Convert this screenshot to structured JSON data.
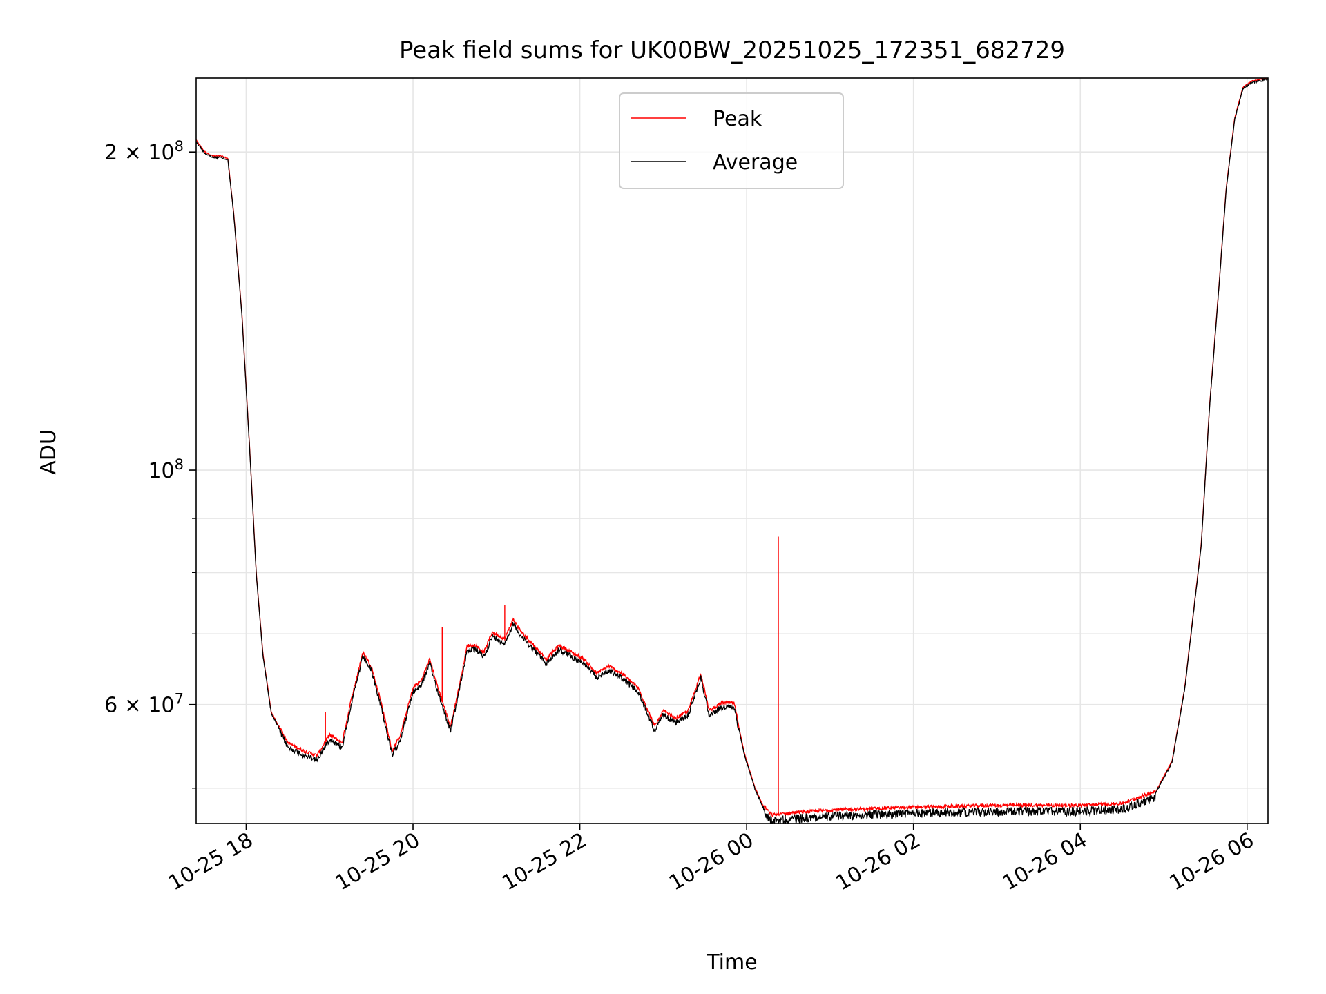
{
  "chart_data": {
    "type": "line",
    "title": "Peak field sums for UK00BW_20251025_172351_682729",
    "xlabel": "Time",
    "ylabel": "ADU",
    "yscale": "log",
    "xlim_hours": [
      -0.6,
      12.25
    ],
    "ylim": [
      46300000,
      235000000
    ],
    "x_unit": "hours since 2025-10-25 18:00",
    "grid": true,
    "legend_position": "upper center",
    "x_ticks": [
      {
        "value": 0,
        "label": "10-25 18"
      },
      {
        "value": 2,
        "label": "10-25 20"
      },
      {
        "value": 4,
        "label": "10-25 22"
      },
      {
        "value": 6,
        "label": "10-26 00"
      },
      {
        "value": 8,
        "label": "10-26 02"
      },
      {
        "value": 10,
        "label": "10-26 04"
      },
      {
        "value": 12,
        "label": "10-26 06"
      }
    ],
    "y_major_ticks": [
      {
        "value": 60000000,
        "mantissa": "6",
        "exp": "7"
      },
      {
        "value": 100000000,
        "mantissa": "",
        "exp": "8"
      },
      {
        "value": 200000000,
        "mantissa": "2",
        "exp": "8"
      }
    ],
    "y_minor_ticks": [
      50000000,
      70000000,
      80000000,
      90000000
    ],
    "series": [
      {
        "name": "Peak",
        "color": "#ff0000",
        "spikes": [
          {
            "x": 6.38,
            "y": 86500000
          },
          {
            "x": 0.95,
            "y": 59000000
          },
          {
            "x": 2.35,
            "y": 71000000
          },
          {
            "x": 3.1,
            "y": 74500000
          }
        ]
      },
      {
        "name": "Average",
        "color": "#000000",
        "x": [
          -0.6,
          -0.5,
          -0.4,
          -0.3,
          -0.22,
          -0.15,
          -0.05,
          0.05,
          0.12,
          0.2,
          0.3,
          0.5,
          0.7,
          0.85,
          1.0,
          1.15,
          1.25,
          1.4,
          1.5,
          1.62,
          1.75,
          1.85,
          2.0,
          2.1,
          2.2,
          2.3,
          2.45,
          2.55,
          2.65,
          2.75,
          2.85,
          2.95,
          3.1,
          3.2,
          3.3,
          3.45,
          3.6,
          3.75,
          3.9,
          4.05,
          4.2,
          4.35,
          4.5,
          4.7,
          4.9,
          5.0,
          5.15,
          5.3,
          5.45,
          5.55,
          5.7,
          5.85,
          5.97,
          6.1,
          6.2,
          6.3,
          6.5,
          7.0,
          8.0,
          9.0,
          10.0,
          10.5,
          10.9,
          11.1,
          11.25,
          11.45,
          11.55,
          11.65,
          11.75,
          11.85,
          11.95,
          12.05,
          12.25
        ],
        "y": [
          205000000,
          200000000,
          198000000,
          198000000,
          197000000,
          175000000,
          140000000,
          102000000,
          80000000,
          67000000,
          59000000,
          55000000,
          54000000,
          53500000,
          56000000,
          55000000,
          60000000,
          67000000,
          65000000,
          60000000,
          54000000,
          56000000,
          62000000,
          63000000,
          66000000,
          62000000,
          57000000,
          62000000,
          68000000,
          68000000,
          67000000,
          70000000,
          69000000,
          72000000,
          70000000,
          68000000,
          66000000,
          68000000,
          67000000,
          66000000,
          64000000,
          65000000,
          64000000,
          62000000,
          57000000,
          59000000,
          58000000,
          59000000,
          64000000,
          59000000,
          60000000,
          60000000,
          54000000,
          50000000,
          48000000,
          47000000,
          47200000,
          47500000,
          47800000,
          48000000,
          48000000,
          48200000,
          49500000,
          53000000,
          62000000,
          85000000,
          115000000,
          145000000,
          185000000,
          215000000,
          230000000,
          233000000,
          235000000
        ]
      }
    ]
  }
}
